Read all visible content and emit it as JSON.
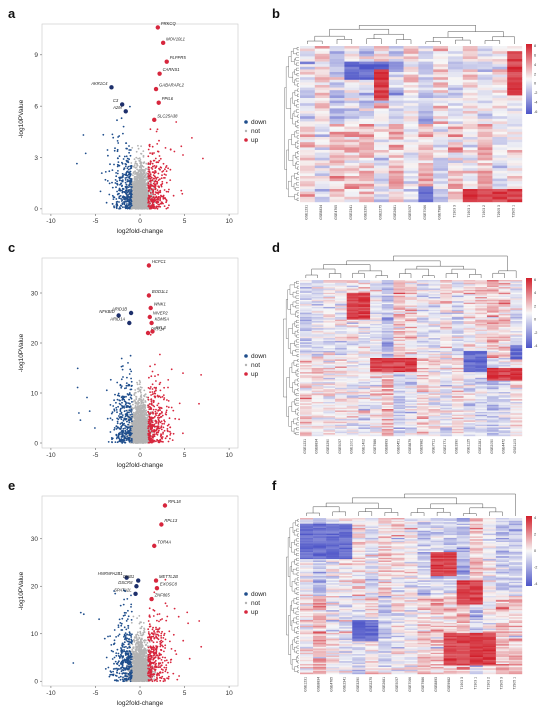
{
  "panels": [
    {
      "letter": "a",
      "type": "volcano"
    },
    {
      "letter": "b",
      "type": "heatmap"
    },
    {
      "letter": "c",
      "type": "volcano"
    },
    {
      "letter": "d",
      "type": "heatmap"
    },
    {
      "letter": "e",
      "type": "volcano"
    },
    {
      "letter": "f",
      "type": "heatmap"
    }
  ],
  "colors": {
    "down": "#1f4e8c",
    "not": "#b3b3b3",
    "up": "#d7263d",
    "heat_low": "#4d55c8",
    "heat_mid": "#f7f7f7",
    "heat_high": "#d21f2b"
  },
  "chart_data": [
    {
      "panel": "a",
      "type": "scatter",
      "xlabel": "log2fold-change",
      "ylabel": "-log10PValue",
      "xlim": [
        -11,
        11
      ],
      "ylim": [
        -0.3,
        10.8
      ],
      "xticks": [
        -10,
        -5,
        0,
        5,
        10
      ],
      "yticks": [
        0,
        3,
        6,
        9
      ],
      "legend": [
        "down",
        "not",
        "up"
      ],
      "legend_position": "right",
      "labeled_points": [
        {
          "label": "PRKCQ",
          "x": 2.0,
          "y": 10.6,
          "group": "up"
        },
        {
          "label": "MOV10L1",
          "x": 2.6,
          "y": 9.7,
          "group": "up"
        },
        {
          "label": "PLPPR5",
          "x": 3.0,
          "y": 8.6,
          "group": "up"
        },
        {
          "label": "CARNS1",
          "x": 2.2,
          "y": 7.9,
          "group": "up"
        },
        {
          "label": "AKR1C4",
          "x": -3.2,
          "y": 7.1,
          "group": "down"
        },
        {
          "label": "GABARAPL2",
          "x": 1.8,
          "y": 7.0,
          "group": "up"
        },
        {
          "label": "C3",
          "x": -2.0,
          "y": 6.1,
          "group": "down"
        },
        {
          "label": "PPIL6",
          "x": 2.1,
          "y": 6.2,
          "group": "up"
        },
        {
          "label": "A2M",
          "x": -1.6,
          "y": 5.7,
          "group": "down"
        },
        {
          "label": "SLC25A38",
          "x": 1.6,
          "y": 5.2,
          "group": "up"
        }
      ]
    },
    {
      "panel": "b",
      "type": "heatmap",
      "legend_ticks": [
        "8",
        "6",
        "4",
        "2",
        "0",
        "-2",
        "-4",
        "-6"
      ],
      "columns": [
        "GSE1231",
        "GSE8834",
        "GSE4765",
        "GSE2341",
        "GSE3290",
        "GSE2275",
        "GSE2681",
        "GSE5057",
        "GSE7066",
        "GSE7986",
        "T1903 3",
        "T1903 1",
        "T1903 2",
        "T2905 3",
        "T2905 1"
      ]
    },
    {
      "panel": "c",
      "type": "scatter",
      "xlabel": "log2fold-change",
      "ylabel": "-log10PValue",
      "xlim": [
        -11,
        11
      ],
      "ylim": [
        -1,
        37
      ],
      "xticks": [
        -10,
        -5,
        0,
        5,
        10
      ],
      "yticks": [
        0,
        10,
        20,
        30
      ],
      "legend": [
        "down",
        "not",
        "up"
      ],
      "legend_position": "right",
      "labeled_points": [
        {
          "label": "HCFC1",
          "x": 1.0,
          "y": 35.5,
          "group": "up"
        },
        {
          "label": "BOD1L1",
          "x": 1.0,
          "y": 29.5,
          "group": "up"
        },
        {
          "label": "WNK1",
          "x": 1.2,
          "y": 27.0,
          "group": "up"
        },
        {
          "label": "ARID1B",
          "x": -1.0,
          "y": 26.0,
          "group": "down"
        },
        {
          "label": "NFKBID",
          "x": -2.4,
          "y": 25.5,
          "group": "down"
        },
        {
          "label": "NIVEP2",
          "x": 1.1,
          "y": 25.2,
          "group": "up"
        },
        {
          "label": "ARID1A",
          "x": -1.2,
          "y": 24.0,
          "group": "down"
        },
        {
          "label": "KDM5A",
          "x": 1.3,
          "y": 24.0,
          "group": "up"
        },
        {
          "label": "PRR14",
          "x": 0.9,
          "y": 22.0,
          "group": "up"
        },
        {
          "label": "XYL3",
          "x": 1.4,
          "y": 22.3,
          "group": "up"
        }
      ]
    },
    {
      "panel": "d",
      "type": "heatmap",
      "legend_ticks": [
        "6",
        "4",
        "2",
        "0",
        "-2",
        "-4"
      ],
      "columns": [
        "GSE1231",
        "GSE8834",
        "GSE3290",
        "GSE5057",
        "GSE1001",
        "GSE1402",
        "GSE7986",
        "GSE8893",
        "GSE6451",
        "GSE8879",
        "GSE9982",
        "GSE7711",
        "GSE2771",
        "GSE3390",
        "GSE1125",
        "GSE2281",
        "GSE2050",
        "GSE4472",
        "GSE1103"
      ]
    },
    {
      "panel": "e",
      "type": "scatter",
      "xlabel": "log2fold-change",
      "ylabel": "-log10PValue",
      "xlim": [
        -11,
        11
      ],
      "ylim": [
        -1,
        39
      ],
      "xticks": [
        -10,
        -5,
        0,
        5,
        10
      ],
      "yticks": [
        0,
        10,
        20,
        30
      ],
      "legend": [
        "down",
        "not",
        "up"
      ],
      "legend_position": "right",
      "labeled_points": [
        {
          "label": "RPL18",
          "x": 2.8,
          "y": 37.0,
          "group": "up"
        },
        {
          "label": "RPL13",
          "x": 2.4,
          "y": 33.0,
          "group": "up"
        },
        {
          "label": "TOR4A",
          "x": 1.6,
          "y": 28.5,
          "group": "up"
        },
        {
          "label": "HNRNPA2B1",
          "x": -1.5,
          "y": 21.8,
          "group": "down"
        },
        {
          "label": "DNB1",
          "x": -0.2,
          "y": 21.2,
          "group": "down"
        },
        {
          "label": "METTL2B",
          "x": 1.8,
          "y": 21.2,
          "group": "up"
        },
        {
          "label": "DSCR8",
          "x": -0.4,
          "y": 20.0,
          "group": "down"
        },
        {
          "label": "EXOSC8",
          "x": 1.9,
          "y": 19.6,
          "group": "up"
        },
        {
          "label": "SPATA2L",
          "x": -0.5,
          "y": 18.4,
          "group": "down"
        },
        {
          "label": "ZNF865",
          "x": 1.3,
          "y": 17.3,
          "group": "up"
        }
      ]
    },
    {
      "panel": "f",
      "type": "heatmap",
      "legend_ticks": [
        "4",
        "2",
        "0",
        "-2",
        "-4"
      ],
      "columns": [
        "GSE1231",
        "GSE8834",
        "GSE4765",
        "GSE2341",
        "GSE3290",
        "GSE2275",
        "GSE2681",
        "GSE5057",
        "GSE7066",
        "GSE7986",
        "GSE8893",
        "GSE9982",
        "T1903 3",
        "T1903 1",
        "T1903 2",
        "T2905 3",
        "T2905 1"
      ]
    }
  ]
}
